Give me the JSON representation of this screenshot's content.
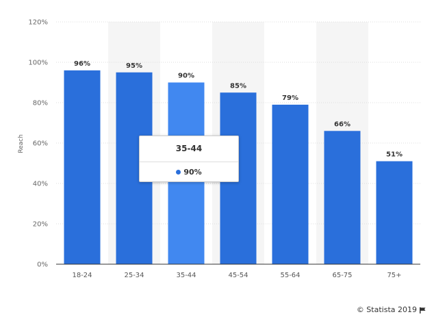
{
  "chart_data": {
    "type": "bar",
    "categories": [
      "18-24",
      "25-34",
      "35-44",
      "45-54",
      "55-64",
      "65-75",
      "75+"
    ],
    "values": [
      96,
      95,
      90,
      85,
      79,
      66,
      51
    ],
    "data_labels": [
      "96%",
      "95%",
      "90%",
      "85%",
      "79%",
      "66%",
      "51%"
    ],
    "ylabel": "Reach",
    "ylim": [
      0,
      120
    ],
    "yticks": [
      "0%",
      "20%",
      "40%",
      "60%",
      "80%",
      "100%",
      "120%"
    ],
    "ytick_values": [
      0,
      20,
      40,
      60,
      80,
      100,
      120
    ],
    "grid": true,
    "highlighted_index": 2,
    "colors": {
      "bar": "#2a6fdb",
      "bar_highlight": "#4188f0",
      "band": "#f5f5f5",
      "grid": "#dddddd"
    }
  },
  "tooltip": {
    "title": "35-44",
    "value": "90%",
    "dot_color": "#2a6fdb"
  },
  "credit": {
    "text": "© Statista 2019"
  }
}
